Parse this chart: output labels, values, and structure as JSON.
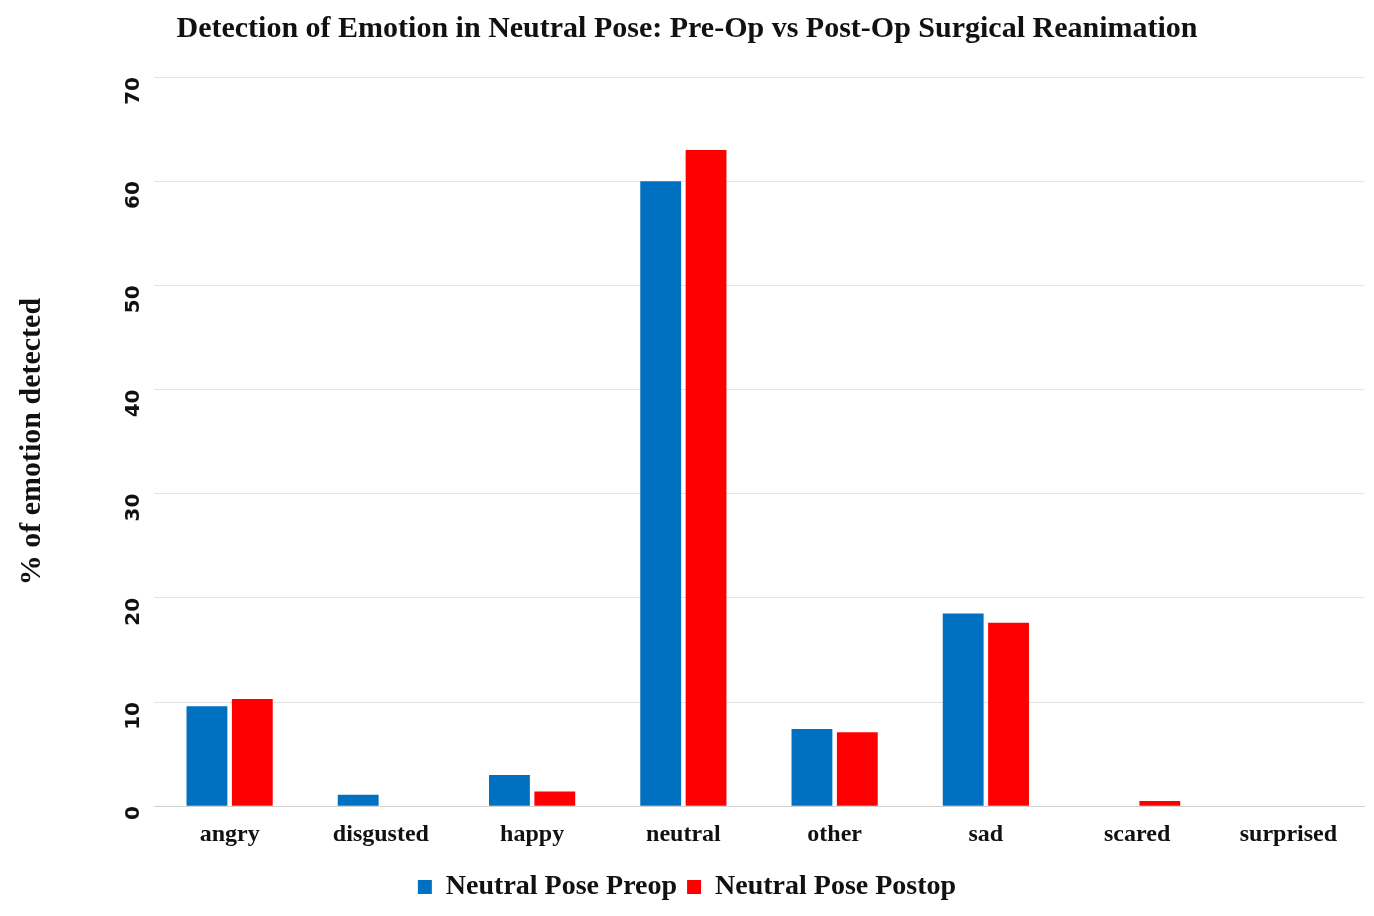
{
  "chart_data": {
    "type": "bar",
    "title": "Detection of Emotion in Neutral Pose: Pre-Op vs Post-Op Surgical Reanimation",
    "ylabel": "% of emotion detected",
    "categories": [
      "angry",
      "disgusted",
      "happy",
      "neutral",
      "other",
      "sad",
      "scared",
      "surprised"
    ],
    "series": [
      {
        "name": "Neutral Pose Preop",
        "color": "#0070c0",
        "values": [
          9.6,
          1.1,
          3.0,
          60.0,
          7.4,
          18.5,
          0,
          0
        ]
      },
      {
        "name": "Neutral Pose Postop",
        "color": "#ff0000",
        "values": [
          10.3,
          0,
          1.4,
          63.0,
          7.1,
          17.6,
          0.5,
          0
        ]
      }
    ],
    "ylim": [
      0,
      70
    ],
    "yticks": [
      0,
      10,
      20,
      30,
      40,
      50,
      60,
      70
    ],
    "grid": "y",
    "legend": "bottom"
  }
}
